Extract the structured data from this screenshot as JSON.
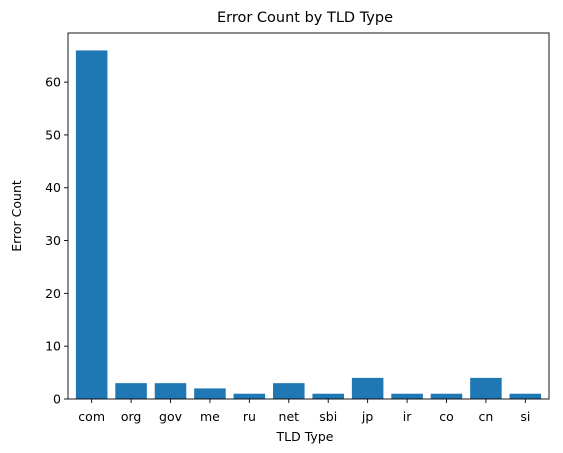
{
  "chart_data": {
    "type": "bar",
    "title": "Error Count by TLD Type",
    "xlabel": "TLD Type",
    "ylabel": "Error Count",
    "categories": [
      "com",
      "org",
      "gov",
      "me",
      "ru",
      "net",
      "sbi",
      "jp",
      "ir",
      "co",
      "cn",
      "si"
    ],
    "values": [
      66,
      3,
      3,
      2,
      1,
      3,
      1,
      4,
      1,
      1,
      4,
      1
    ],
    "ylim": [
      0,
      69.3
    ],
    "yticks": [
      0,
      10,
      20,
      30,
      40,
      50,
      60
    ],
    "grid": false,
    "bar_color": "#1f77b4"
  }
}
